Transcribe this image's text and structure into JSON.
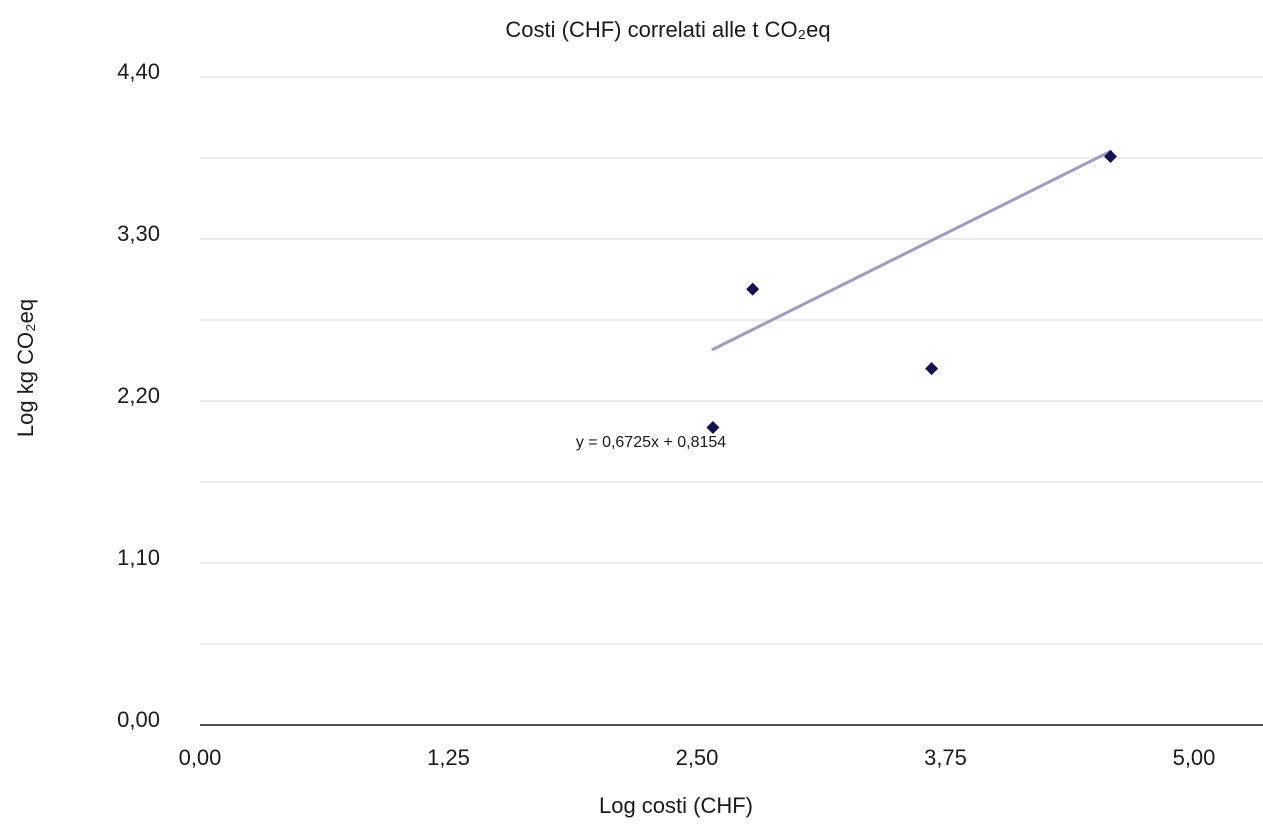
{
  "chart_data": {
    "type": "scatter",
    "title": "Costi (CHF) correlati alle t CO₂eq",
    "xlabel": "Log costi (CHF)",
    "ylabel": "Log kg CO₂eq",
    "xlim": [
      0,
      5.25
    ],
    "ylim": [
      0,
      4.4
    ],
    "x_ticks": [
      "0,00",
      "1,25",
      "2,50",
      "3,75",
      "5,00"
    ],
    "x_tick_values": [
      0,
      1.25,
      2.5,
      3.75,
      5.0
    ],
    "y_ticks": [
      "0,00",
      "1,10",
      "2,20",
      "3,30",
      "4,40"
    ],
    "y_tick_values": [
      0,
      1.1,
      2.2,
      3.3,
      4.4
    ],
    "y_minor_grid": [
      0.55,
      1.65,
      2.75,
      3.85
    ],
    "grid": true,
    "legend": "none",
    "series": [
      {
        "marker": "diamond",
        "color": "#14124f",
        "points": [
          {
            "x": 2.58,
            "y": 2.02
          },
          {
            "x": 2.78,
            "y": 2.96
          },
          {
            "x": 3.68,
            "y": 2.42
          },
          {
            "x": 4.58,
            "y": 3.86
          }
        ]
      }
    ],
    "trendline": {
      "slope": 0.6725,
      "intercept": 0.8154,
      "x_range": [
        2.58,
        4.58
      ],
      "color": "#9e9cbf",
      "equation_label": "y = 0,6725x + 0,8154"
    }
  }
}
